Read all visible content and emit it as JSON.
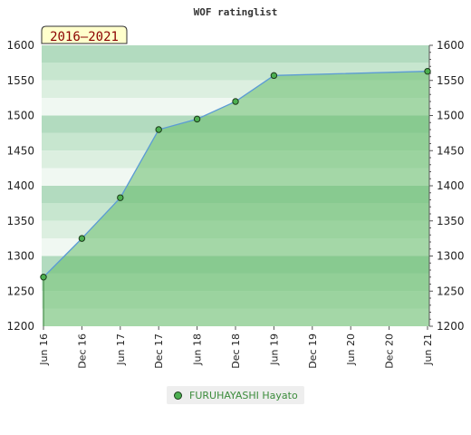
{
  "chart_data": {
    "type": "area",
    "title": "WOF ratinglist",
    "period_badge": "2016–2021",
    "ylim": [
      1200,
      1600
    ],
    "yticks": [
      1200,
      1250,
      1300,
      1350,
      1400,
      1450,
      1500,
      1550,
      1600
    ],
    "x_ticks": [
      "Jun 16",
      "Dec 16",
      "Jun 17",
      "Dec 17",
      "Jun 18",
      "Dec 18",
      "Jun 19",
      "Dec 19",
      "Jun 20",
      "Dec 20",
      "Jun 21"
    ],
    "series": [
      {
        "name": "FURUHAYASHI Hayato",
        "x": [
          "Jun 16",
          "Dec 16",
          "Jun 17",
          "Dec 17",
          "Jun 18",
          "Dec 18",
          "Jun 19",
          "Jun 21"
        ],
        "values": [
          1270,
          1325,
          1383,
          1480,
          1495,
          1520,
          1557,
          1563
        ]
      }
    ],
    "colors": {
      "line": "#5b9bd5",
      "fill": "#66bb6a",
      "marker": "#4caf50",
      "band_dark": "#b2dbbf",
      "band_light": "#f0f8f2"
    },
    "legend_position": "bottom-center",
    "grid": true
  }
}
